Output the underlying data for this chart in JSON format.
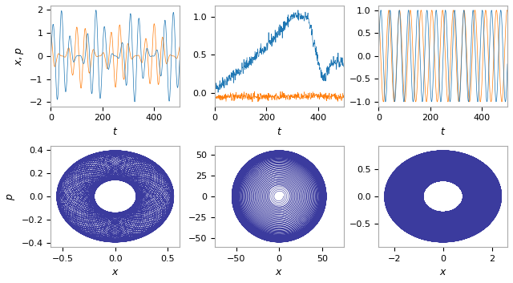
{
  "blue_color": "#1f77b4",
  "orange_color": "#ff7f0e",
  "purple_color": "#3b3b9e",
  "background": "#ffffff",
  "n_points": 500,
  "figsize": [
    6.4,
    3.53
  ],
  "dpi": 100
}
